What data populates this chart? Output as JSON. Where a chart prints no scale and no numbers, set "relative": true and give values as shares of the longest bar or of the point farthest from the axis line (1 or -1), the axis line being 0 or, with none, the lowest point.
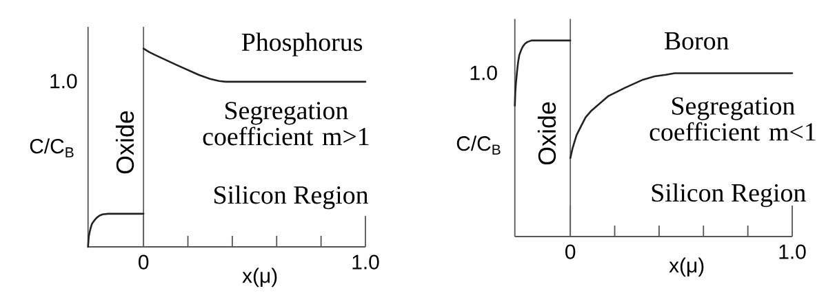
{
  "chart_data": [
    {
      "type": "line",
      "title": "Phosphorus",
      "xlabel": "x(μ)",
      "ylabel": "C/C$_{B}$",
      "annotations": [
        "1.0",
        "Segregation coefficient m>1",
        "Oxide",
        "Silicon Region"
      ],
      "series": [
        {
          "color": "#222222",
          "x": [
            -0.25,
            -0.247,
            -0.242,
            -0.237,
            -0.232,
            -0.222,
            -0.211,
            -0.198,
            -0.185,
            -0.16,
            0
          ],
          "values": [
            0,
            0.05,
            0.078,
            0.1,
            0.117,
            0.133,
            0.147,
            0.158,
            0.164,
            0.167,
            0.167
          ]
        },
        {
          "color": "#222222",
          "x": [
            0,
            0.025,
            0.05,
            0.075,
            0.1,
            0.15,
            0.2,
            0.25,
            0.3,
            0.34,
            0.37,
            1.0
          ],
          "values": [
            1,
            0.983,
            0.969,
            0.956,
            0.943,
            0.917,
            0.892,
            0.867,
            0.847,
            0.837,
            0.833,
            0.833
          ]
        }
      ],
      "relative": true,
      "xlim": [
        -0.25,
        1.0
      ],
      "xticks": [
        {
          "value": 0,
          "label": "0"
        },
        {
          "value": 0.2,
          "label": null
        },
        {
          "value": 0.4,
          "label": null
        },
        {
          "value": 0.6,
          "label": null
        },
        {
          "value": 0.8,
          "label": null
        },
        {
          "value": 1.0,
          "label": "1.0"
        }
      ],
      "ref_lines": [
        {
          "axis": "x",
          "value": 0,
          "color": "#606060"
        }
      ],
      "line_style": "solid"
    },
    {
      "type": "line",
      "title": "Boron",
      "xlabel": "x(μ)",
      "ylabel": "C/C$_{B}$",
      "annotations": [
        "1.0",
        "Segregation coefficient m<1",
        "Oxide",
        "Silicon Region"
      ],
      "series": [
        {
          "color": "#222222",
          "x": [
            -0.25,
            -0.248,
            -0.245,
            -0.24,
            -0.235,
            -0.23,
            -0.222,
            -0.215,
            -0.205,
            -0.194,
            -0.175,
            0
          ],
          "values": [
            0.667,
            0.733,
            0.783,
            0.842,
            0.892,
            0.925,
            0.95,
            0.967,
            0.983,
            0.992,
            1,
            1
          ]
        },
        {
          "color": "#222222",
          "x": [
            0,
            0.01,
            0.028,
            0.05,
            0.069,
            0.095,
            0.121,
            0.172,
            0.245,
            0.327,
            0.38,
            0.43,
            0.47,
            1.0
          ],
          "values": [
            0.4,
            0.45,
            0.517,
            0.567,
            0.608,
            0.642,
            0.667,
            0.717,
            0.758,
            0.8,
            0.817,
            0.825,
            0.833,
            0.833
          ]
        }
      ],
      "relative": true,
      "xlim": [
        -0.25,
        1.0
      ],
      "xticks": [
        {
          "value": 0,
          "label": "0"
        },
        {
          "value": 0.2,
          "label": null
        },
        {
          "value": 0.4,
          "label": null
        },
        {
          "value": 0.6,
          "label": null
        },
        {
          "value": 0.8,
          "label": null
        },
        {
          "value": 1.0,
          "label": "1.0"
        }
      ],
      "ref_lines": [
        {
          "axis": "x",
          "value": 0,
          "color": "#606060"
        }
      ],
      "line_style": "solid"
    }
  ]
}
